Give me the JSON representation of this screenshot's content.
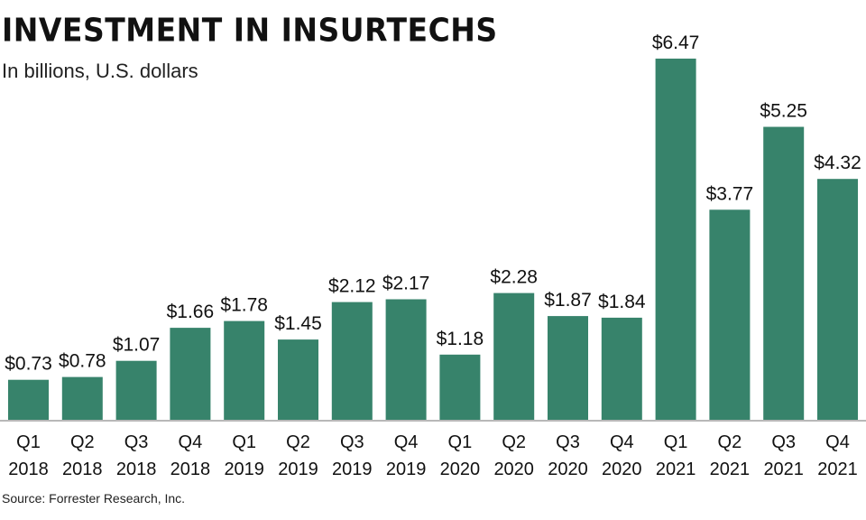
{
  "header": {
    "title": "INVESTMENT IN INSURTECHS",
    "subtitle": "In billions, U.S. dollars"
  },
  "footer": {
    "source": "Source: Forrester Research, Inc."
  },
  "colors": {
    "bar": "#37836B",
    "axis": "#B8B8B8",
    "text": "#111111"
  },
  "chart_data": {
    "type": "bar",
    "title": "INVESTMENT IN INSURTECHS",
    "subtitle": "In billions, U.S. dollars",
    "xlabel": "",
    "ylabel": "",
    "ylim": [
      0,
      7
    ],
    "grid": false,
    "value_prefix": "$",
    "categories": [
      [
        "Q1",
        "2018"
      ],
      [
        "Q2",
        "2018"
      ],
      [
        "Q3",
        "2018"
      ],
      [
        "Q4",
        "2018"
      ],
      [
        "Q1",
        "2019"
      ],
      [
        "Q2",
        "2019"
      ],
      [
        "Q3",
        "2019"
      ],
      [
        "Q4",
        "2019"
      ],
      [
        "Q1",
        "2020"
      ],
      [
        "Q2",
        "2020"
      ],
      [
        "Q3",
        "2020"
      ],
      [
        "Q4",
        "2020"
      ],
      [
        "Q1",
        "2021"
      ],
      [
        "Q2",
        "2021"
      ],
      [
        "Q3",
        "2021"
      ],
      [
        "Q4",
        "2021"
      ]
    ],
    "values": [
      0.73,
      0.78,
      1.07,
      1.66,
      1.78,
      1.45,
      2.12,
      2.17,
      1.18,
      2.28,
      1.87,
      1.84,
      6.47,
      3.77,
      5.25,
      4.32
    ],
    "value_labels": [
      "$0.73",
      "$0.78",
      "$1.07",
      "$1.66",
      "$1.78",
      "$1.45",
      "$2.12",
      "$2.17",
      "$1.18",
      "$2.28",
      "$1.87",
      "$1.84",
      "$6.47",
      "$3.77",
      "$5.25",
      "$4.32"
    ]
  }
}
